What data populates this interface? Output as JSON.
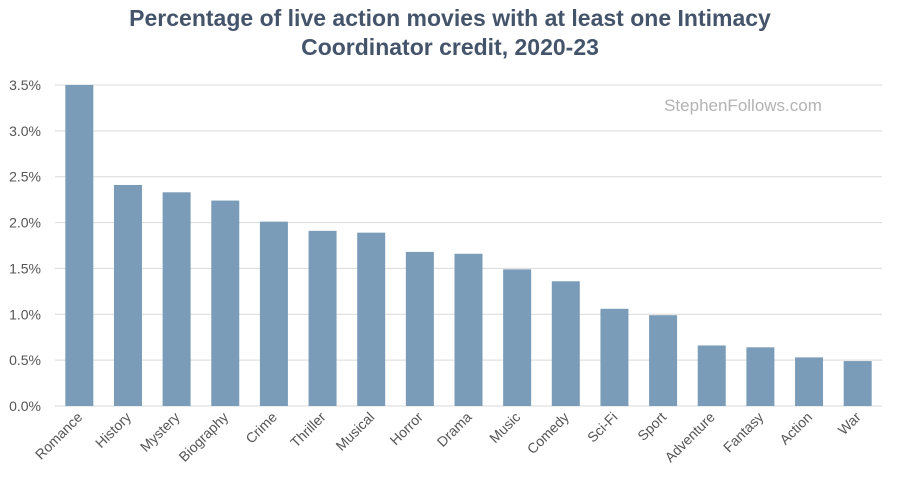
{
  "chart_data": {
    "type": "bar",
    "title_line1": "Percentage of live action movies with at least one Intimacy",
    "title_line2": "Coordinator credit, 2020-23",
    "watermark": "StephenFollows.com",
    "categories": [
      "Romance",
      "History",
      "Mystery",
      "Biography",
      "Crime",
      "Thriller",
      "Musical",
      "Horror",
      "Drama",
      "Music",
      "Comedy",
      "Sci-Fi",
      "Sport",
      "Adventure",
      "Fantasy",
      "Action",
      "War"
    ],
    "values": [
      3.5,
      2.41,
      2.33,
      2.24,
      2.01,
      1.91,
      1.89,
      1.68,
      1.66,
      1.49,
      1.36,
      1.06,
      0.99,
      0.66,
      0.64,
      0.53,
      0.49
    ],
    "ylim": [
      0,
      3.5
    ],
    "yticks": [
      0,
      0.5,
      1.0,
      1.5,
      2.0,
      2.5,
      3.0,
      3.5
    ],
    "ytick_labels": [
      "0.0%",
      "0.5%",
      "1.0%",
      "1.5%",
      "2.0%",
      "2.5%",
      "3.0%",
      "3.5%"
    ],
    "xlabel": "",
    "ylabel": "",
    "grid": true,
    "bar_color": "#7a9cb8",
    "grid_color": "#d9d9d9",
    "title_color": "#44546a"
  }
}
